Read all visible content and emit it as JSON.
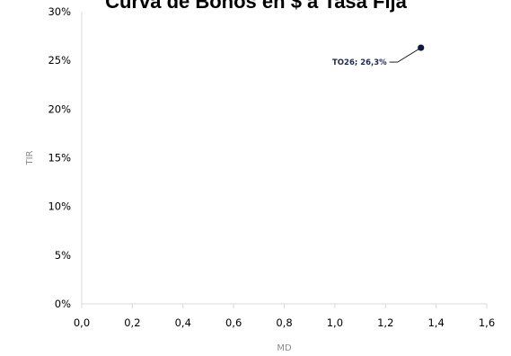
{
  "chart_data": {
    "type": "scatter",
    "title": "Curva de Bonos en $ a Tasa Fija",
    "xlabel": "MD",
    "ylabel": "TIR",
    "xlim": [
      0,
      1.6
    ],
    "ylim": [
      0,
      30
    ],
    "x_ticks": [
      "0,0",
      "0,2",
      "0,4",
      "0,6",
      "0,8",
      "1,0",
      "1,2",
      "1,4",
      "1,6"
    ],
    "y_ticks": [
      "0%",
      "5%",
      "10%",
      "15%",
      "20%",
      "25%",
      "30%"
    ],
    "grid": false,
    "legend": false,
    "marker_color": "#0f1a3c",
    "series": [
      {
        "points": [
          {
            "x": 1.34,
            "y": 26.3,
            "label": "TO26; 26,3%"
          }
        ]
      }
    ]
  }
}
